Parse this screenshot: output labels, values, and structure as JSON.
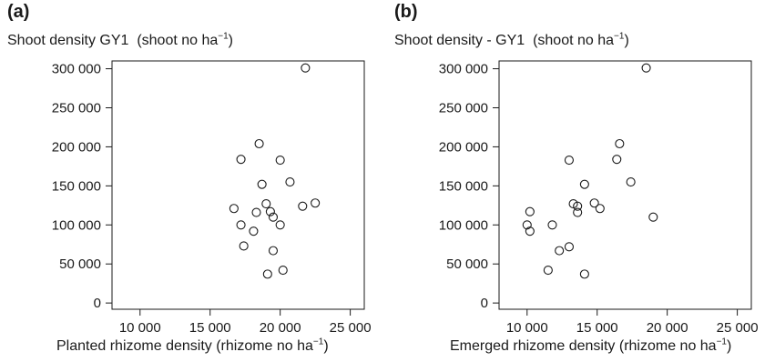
{
  "chart_data": [
    {
      "type": "scatter",
      "panel_label": "(a)",
      "title": "Shoot density GY1",
      "title_unit_prefix": "(shoot no ha",
      "title_unit_exp": "−1",
      "title_unit_suffix": ")",
      "xlabel": "Planted rhizome density (rhizome no ha",
      "xlabel_exp": "−1",
      "xlabel_suffix": ")",
      "xlim": [
        8000,
        26000
      ],
      "ylim": [
        -8000,
        310000
      ],
      "xticks": [
        10000,
        15000,
        20000,
        25000
      ],
      "xtick_labels": [
        "10 000",
        "15 000",
        "20 000",
        "25 000"
      ],
      "yticks": [
        0,
        50000,
        100000,
        150000,
        200000,
        250000,
        300000
      ],
      "ytick_labels": [
        "0",
        "50 000",
        "100 000",
        "150 000",
        "200 000",
        "250 000",
        "300 000"
      ],
      "grid": false,
      "points": [
        {
          "x": 21800,
          "y": 301000
        },
        {
          "x": 18500,
          "y": 204000
        },
        {
          "x": 17200,
          "y": 184000
        },
        {
          "x": 20000,
          "y": 183000
        },
        {
          "x": 20700,
          "y": 155000
        },
        {
          "x": 18700,
          "y": 152000
        },
        {
          "x": 19000,
          "y": 127000
        },
        {
          "x": 22500,
          "y": 128000
        },
        {
          "x": 21600,
          "y": 124000
        },
        {
          "x": 16700,
          "y": 121000
        },
        {
          "x": 19300,
          "y": 117000
        },
        {
          "x": 18300,
          "y": 116000
        },
        {
          "x": 19500,
          "y": 110000
        },
        {
          "x": 17200,
          "y": 100000
        },
        {
          "x": 20000,
          "y": 100000
        },
        {
          "x": 18100,
          "y": 92000
        },
        {
          "x": 17400,
          "y": 73000
        },
        {
          "x": 19500,
          "y": 67000
        },
        {
          "x": 20200,
          "y": 42000
        },
        {
          "x": 19100,
          "y": 37000
        }
      ]
    },
    {
      "type": "scatter",
      "panel_label": "(b)",
      "title": "Shoot density - GY1",
      "title_unit_prefix": "(shoot no ha",
      "title_unit_exp": "−1",
      "title_unit_suffix": ")",
      "xlabel": "Emerged rhizome density (rhizome no ha",
      "xlabel_exp": "−1",
      "xlabel_suffix": ")",
      "xlim": [
        8000,
        26000
      ],
      "ylim": [
        -8000,
        310000
      ],
      "xticks": [
        10000,
        15000,
        20000,
        25000
      ],
      "xtick_labels": [
        "10 000",
        "15 000",
        "20 000",
        "25 000"
      ],
      "yticks": [
        0,
        50000,
        100000,
        150000,
        200000,
        250000,
        300000
      ],
      "ytick_labels": [
        "0",
        "50 000",
        "100 000",
        "150 000",
        "200 000",
        "250 000",
        "300 000"
      ],
      "grid": false,
      "points": [
        {
          "x": 18500,
          "y": 301000
        },
        {
          "x": 16600,
          "y": 204000
        },
        {
          "x": 13000,
          "y": 183000
        },
        {
          "x": 16400,
          "y": 184000
        },
        {
          "x": 17400,
          "y": 155000
        },
        {
          "x": 14100,
          "y": 152000
        },
        {
          "x": 13300,
          "y": 127000
        },
        {
          "x": 14800,
          "y": 128000
        },
        {
          "x": 13600,
          "y": 124000
        },
        {
          "x": 15200,
          "y": 121000
        },
        {
          "x": 10200,
          "y": 117000
        },
        {
          "x": 13600,
          "y": 116000
        },
        {
          "x": 19000,
          "y": 110000
        },
        {
          "x": 10000,
          "y": 100000
        },
        {
          "x": 11800,
          "y": 100000
        },
        {
          "x": 10200,
          "y": 92000
        },
        {
          "x": 13000,
          "y": 72000
        },
        {
          "x": 12300,
          "y": 67000
        },
        {
          "x": 11500,
          "y": 42000
        },
        {
          "x": 14100,
          "y": 37000
        }
      ]
    }
  ]
}
